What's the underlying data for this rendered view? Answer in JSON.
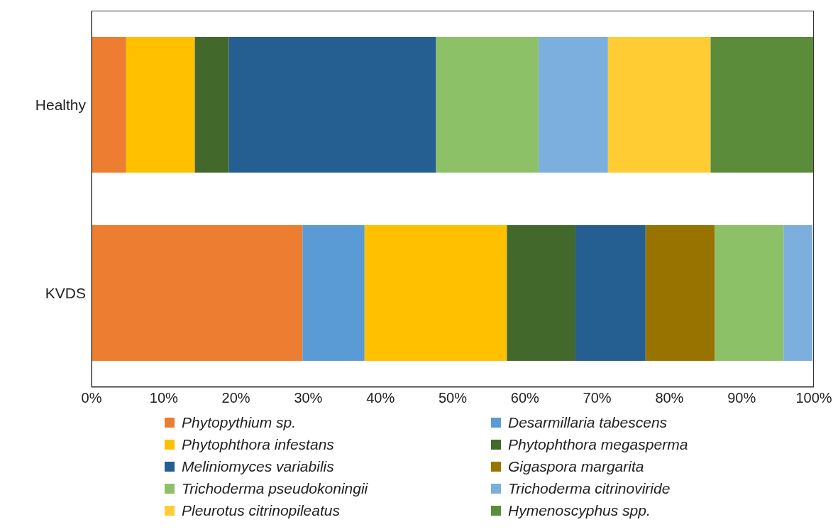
{
  "chart_data": {
    "type": "bar",
    "orientation": "horizontal",
    "stacked": true,
    "categories": [
      "Healthy",
      "KVDS"
    ],
    "series": [
      {
        "name": "Phytopythium sp.",
        "color": "#ed7d31",
        "values": [
          4.8,
          29.2
        ]
      },
      {
        "name": "Desarmillaria tabescens",
        "color": "#5b9bd5",
        "values": [
          0,
          8.6
        ]
      },
      {
        "name": "Phytophthora infestans",
        "color": "#ffc000",
        "values": [
          9.5,
          19.7
        ]
      },
      {
        "name": "Phytophthora megasperma",
        "color": "#43682b",
        "values": [
          4.7,
          9.5
        ]
      },
      {
        "name": "Meliniomyces variabilis",
        "color": "#255e91",
        "values": [
          28.7,
          9.7
        ]
      },
      {
        "name": "Gigaspora margarita",
        "color": "#997300",
        "values": [
          0,
          9.6
        ]
      },
      {
        "name": "Trichoderma pseudokoningii",
        "color": "#8cc168",
        "values": [
          14.2,
          9.5
        ]
      },
      {
        "name": "Trichoderma citrinoviride",
        "color": "#7cafdd",
        "values": [
          9.6,
          4.0
        ]
      },
      {
        "name": "Pleurotus citrinopileatus",
        "color": "#ffcd33",
        "values": [
          14.2,
          0
        ]
      },
      {
        "name": "Hymenoscyphus spp.",
        "color": "#5b8c3a",
        "values": [
          14.2,
          0
        ]
      }
    ],
    "xlim": [
      0,
      100
    ],
    "xticks": [
      {
        "value": 0,
        "label": "0%"
      },
      {
        "value": 10,
        "label": "10%"
      },
      {
        "value": 20,
        "label": "20%"
      },
      {
        "value": 30,
        "label": "30%"
      },
      {
        "value": 40,
        "label": "40%"
      },
      {
        "value": 50,
        "label": "50%"
      },
      {
        "value": 60,
        "label": "60%"
      },
      {
        "value": 70,
        "label": "70%"
      },
      {
        "value": 80,
        "label": "80%"
      },
      {
        "value": 90,
        "label": "90%"
      },
      {
        "value": 100,
        "label": "100%"
      }
    ],
    "grid": false,
    "legend": "bottom"
  }
}
